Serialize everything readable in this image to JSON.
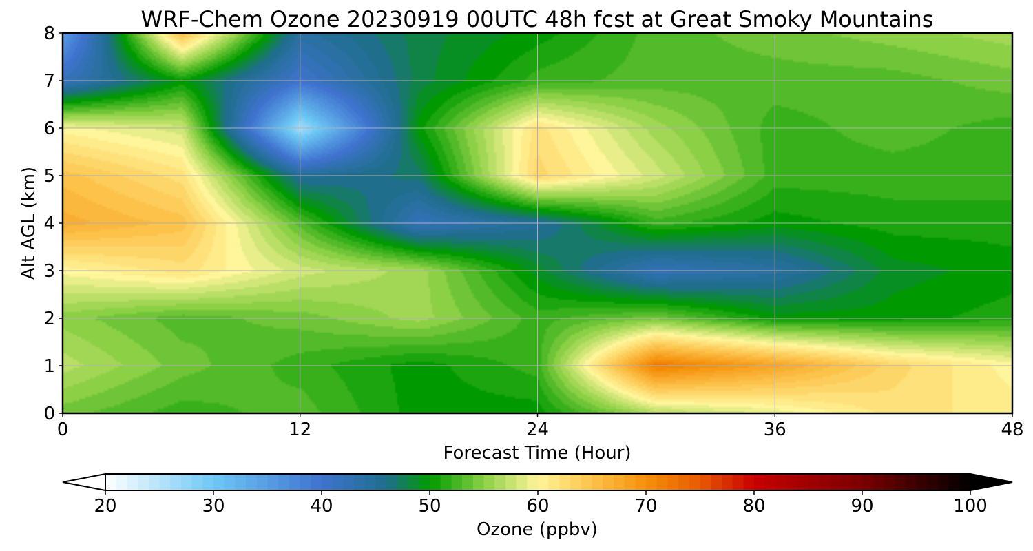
{
  "chart_data": {
    "type": "heatmap",
    "title": "WRF-Chem Ozone  20230919 00UTC 48h fcst at Great Smoky Mountains",
    "xlabel": "Forecast Time (Hour)",
    "ylabel": "Alt AGL (km)",
    "xlim": [
      0,
      48
    ],
    "ylim": [
      0,
      8
    ],
    "x_ticks": [
      "0",
      "12",
      "24",
      "36",
      "48"
    ],
    "y_ticks": [
      "0",
      "1",
      "2",
      "3",
      "4",
      "5",
      "6",
      "7",
      "8"
    ],
    "grid": true,
    "x_hours": [
      0,
      6,
      12,
      18,
      24,
      30,
      36,
      42,
      48
    ],
    "y_km": [
      0,
      1,
      2,
      3,
      4,
      5,
      6,
      7,
      8
    ],
    "z_ppbv": [
      [
        54,
        52,
        53,
        50,
        50,
        57,
        59,
        62,
        61
      ],
      [
        57,
        54,
        52,
        50,
        52,
        72,
        68,
        63,
        60
      ],
      [
        55,
        53,
        54,
        56,
        52,
        54,
        50,
        50,
        51
      ],
      [
        60,
        62,
        58,
        56,
        49,
        42,
        44,
        49,
        50
      ],
      [
        67,
        65,
        53,
        42,
        45,
        52,
        50,
        51,
        51
      ],
      [
        65,
        62,
        45,
        47,
        63,
        58,
        52,
        52,
        52
      ],
      [
        60,
        58,
        26,
        50,
        62,
        56,
        52,
        53,
        52
      ],
      [
        42,
        50,
        40,
        48,
        52,
        53,
        53,
        53,
        54
      ],
      [
        35,
        65,
        44,
        48,
        50,
        53,
        54,
        55,
        56
      ]
    ],
    "colorbar": {
      "label": "Ozone  (ppbv)",
      "min": 20,
      "max": 100,
      "ticks": [
        "20",
        "30",
        "40",
        "50",
        "60",
        "70",
        "80",
        "90",
        "100"
      ],
      "extend": "both",
      "stops": [
        {
          "v": 20,
          "c": "#ffffff"
        },
        {
          "v": 30,
          "c": "#6ec8f6"
        },
        {
          "v": 40,
          "c": "#3f73cf"
        },
        {
          "v": 46,
          "c": "#1f6e8c"
        },
        {
          "v": 50,
          "c": "#009a00"
        },
        {
          "v": 55,
          "c": "#8bd045"
        },
        {
          "v": 60,
          "c": "#fff59a"
        },
        {
          "v": 65,
          "c": "#fcc24a"
        },
        {
          "v": 70,
          "c": "#f5900c"
        },
        {
          "v": 75,
          "c": "#e85a00"
        },
        {
          "v": 80,
          "c": "#c80000"
        },
        {
          "v": 90,
          "c": "#7a0000"
        },
        {
          "v": 100,
          "c": "#000000"
        }
      ]
    }
  }
}
